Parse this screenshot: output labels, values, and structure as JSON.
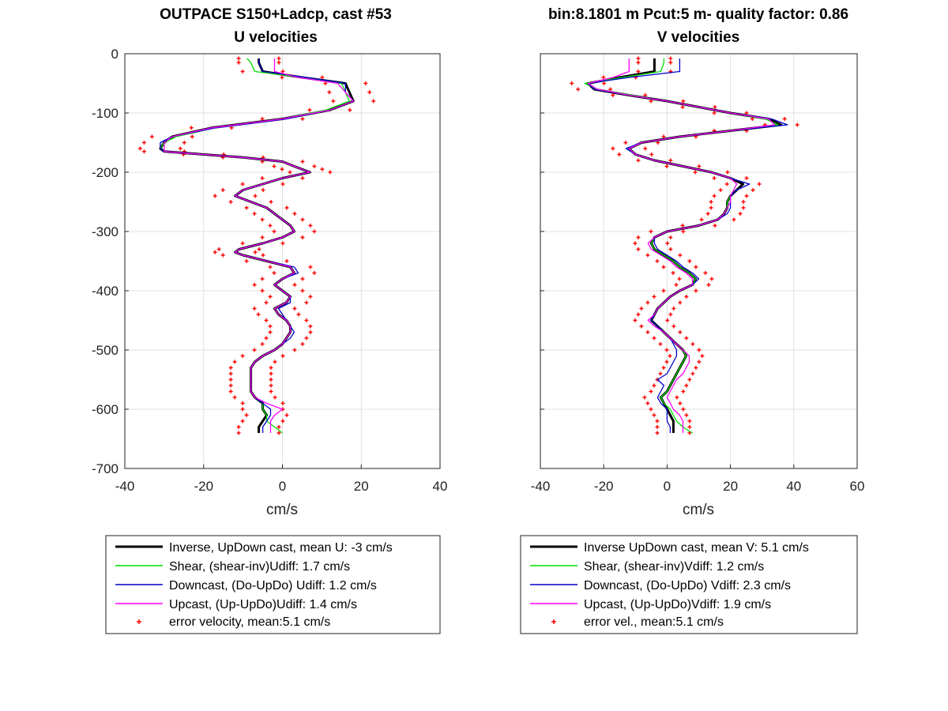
{
  "chart_data": [
    {
      "type": "line",
      "title_lines": [
        "OUTPACE S150+Ladcp, cast #53",
        "U velocities"
      ],
      "xlabel": "cm/s",
      "ylabel": "",
      "xlim": [
        -40,
        40
      ],
      "ylim": [
        -700,
        0
      ],
      "xticks": [
        -40,
        -20,
        0,
        20,
        40
      ],
      "yticks": [
        0,
        -100,
        -200,
        -300,
        -400,
        -500,
        -600,
        -700
      ],
      "grid": true,
      "legend_position": "below",
      "legend": [
        "Inverse, UpDown cast, mean U:  -3 cm/s",
        "Shear, (shear-inv)Udiff:  1.7 cm/s",
        "Downcast, (Do-UpDo) Udiff:  1.2 cm/s",
        "Upcast, (Up-UpDo)Udiff:  1.4 cm/s",
        "error velocity, mean:5.1 cm/s"
      ],
      "depth": [
        -8,
        -15,
        -30,
        -40,
        -50,
        -65,
        -80,
        -95,
        -110,
        -125,
        -140,
        -150,
        -160,
        -165,
        -170,
        -175,
        -182,
        -190,
        -195,
        -200,
        -210,
        -220,
        -230,
        -240,
        -250,
        -260,
        -270,
        -280,
        -290,
        -300,
        -310,
        -320,
        -330,
        -335,
        -340,
        -350,
        -360,
        -370,
        -380,
        -390,
        -400,
        -410,
        -420,
        -430,
        -440,
        -450,
        -460,
        -470,
        -480,
        -490,
        -500,
        -510,
        -520,
        -530,
        -540,
        -550,
        -560,
        -570,
        -580,
        -590,
        -600,
        -610,
        -620,
        -630,
        -640
      ],
      "series": [
        {
          "style": "inverse",
          "values": [
            -6,
            -6,
            -5,
            5,
            16,
            17,
            18,
            12,
            0,
            -18,
            -28,
            -30,
            -31,
            -30,
            -20,
            -10,
            0,
            3,
            5,
            7,
            0,
            -5,
            -10,
            -12,
            -8,
            -4,
            -2,
            0,
            2,
            3,
            0,
            -5,
            -11,
            -12,
            -10,
            -4,
            2,
            3,
            0,
            -2,
            0,
            2,
            1,
            -2,
            -1,
            1,
            2,
            2,
            1,
            0,
            -2,
            -5,
            -7,
            -8,
            -8,
            -8,
            -8,
            -8,
            -7,
            -5,
            -5,
            -4,
            -5,
            -6,
            -6
          ]
        },
        {
          "style": "shear",
          "values": [
            -9,
            -8,
            -7,
            5,
            15,
            16,
            17,
            11,
            0,
            -17,
            -27,
            -30,
            -31,
            -30,
            -20,
            -10,
            0,
            3,
            5,
            7,
            0,
            -5,
            -10,
            -12,
            -8,
            -4,
            -2,
            0,
            2,
            3,
            0,
            -5,
            -11,
            -12,
            -10,
            -4,
            2,
            3,
            0,
            -2,
            0,
            2,
            1,
            -2,
            -1,
            1,
            2,
            2,
            1,
            0,
            -2,
            -5,
            -7,
            -8,
            -8,
            -8,
            -8,
            -8,
            -7,
            -5,
            -5,
            -4,
            -4,
            -2,
            0
          ]
        },
        {
          "style": "down",
          "values": [
            -6,
            -6,
            -5,
            6,
            16,
            16,
            18,
            12,
            1,
            -17,
            -28,
            -31,
            -31,
            -30,
            -20,
            -10,
            0,
            3,
            5,
            7,
            0,
            -5,
            -10,
            -12,
            -8,
            -4,
            -2,
            0,
            2,
            3,
            0,
            -5,
            -11,
            -12,
            -10,
            -4,
            3,
            4,
            0,
            -2,
            0,
            2,
            2,
            -1,
            0,
            1,
            2,
            3,
            2,
            0,
            -2,
            -5,
            -7,
            -8,
            -8,
            -8,
            -8,
            -8,
            -7,
            -5,
            -3,
            -3,
            -4,
            -5,
            -5
          ]
        },
        {
          "style": "up",
          "values": [
            -2,
            -2,
            -2,
            4,
            14,
            16,
            18,
            12,
            0,
            -18,
            -28,
            -30,
            -30,
            -30,
            -20,
            -10,
            0,
            3,
            5,
            7,
            0,
            -5,
            -10,
            -12,
            -8,
            -4,
            -2,
            0,
            2,
            3,
            0,
            -5,
            -11,
            -12,
            -10,
            -4,
            2,
            3,
            0,
            -2,
            0,
            2,
            1,
            -2,
            -1,
            1,
            2,
            2,
            1,
            0,
            -2,
            -5,
            -7,
            -8,
            -8,
            -8,
            -8,
            -8,
            -7,
            -4,
            0,
            -2,
            -3,
            -3,
            -3
          ]
        }
      ],
      "error_offset": 5.1
    },
    {
      "type": "line",
      "title_lines": [
        "bin:8.1801 m  Pcut:5 m- quality factor:  0.86",
        "V velocities"
      ],
      "xlabel": "cm/s",
      "ylabel": "",
      "xlim": [
        -40,
        60
      ],
      "ylim": [
        -700,
        0
      ],
      "xticks": [
        -40,
        -20,
        0,
        20,
        40,
        60
      ],
      "yticks": [
        0,
        -100,
        -200,
        -300,
        -400,
        -500,
        -600,
        -700
      ],
      "grid": true,
      "legend_position": "below",
      "legend": [
        "Inverse UpDown cast, mean V:  5.1 cm/s",
        "Shear, (shear-inv)Vdiff:  1.2 cm/s",
        "Downcast, (Do-UpDo) Vdiff:  2.3 cm/s",
        "Upcast, (Up-UpDo)Vdiff:  1.9 cm/s",
        "error vel., mean:5.1 cm/s"
      ],
      "depth": [
        -8,
        -15,
        -30,
        -40,
        -50,
        -60,
        -70,
        -80,
        -90,
        -100,
        -110,
        -120,
        -130,
        -140,
        -150,
        -160,
        -170,
        -180,
        -190,
        -200,
        -210,
        -220,
        -230,
        -240,
        -250,
        -260,
        -270,
        -280,
        -290,
        -300,
        -310,
        -320,
        -330,
        -340,
        -350,
        -360,
        -370,
        -380,
        -390,
        -400,
        -410,
        -420,
        -430,
        -440,
        -450,
        -460,
        -470,
        -480,
        -490,
        -500,
        -510,
        -520,
        -530,
        -540,
        -550,
        -560,
        -570,
        -580,
        -590,
        -600,
        -610,
        -620,
        -630,
        -640
      ],
      "series": [
        {
          "style": "inverse",
          "values": [
            -4,
            -4,
            -4,
            -15,
            -25,
            -23,
            -12,
            0,
            10,
            20,
            32,
            36,
            20,
            4,
            -8,
            -12,
            -10,
            -4,
            5,
            14,
            20,
            24,
            22,
            20,
            19,
            19,
            18,
            16,
            10,
            0,
            -4,
            -5,
            -4,
            -1,
            2,
            4,
            7,
            9,
            8,
            4,
            1,
            -1,
            -3,
            -4,
            -5,
            -3,
            -1,
            1,
            3,
            5,
            6,
            5,
            4,
            3,
            2,
            1,
            0,
            -2,
            -1,
            0,
            1,
            2,
            2,
            2
          ]
        },
        {
          "style": "shear",
          "values": [
            -1,
            -1,
            -2,
            -14,
            -26,
            -22,
            -11,
            0,
            10,
            20,
            31,
            35,
            20,
            4,
            -8,
            -12,
            -10,
            -4,
            5,
            14,
            20,
            22,
            21,
            20,
            19,
            19,
            18,
            16,
            10,
            0,
            -4,
            -5,
            -4,
            -1,
            2,
            4,
            7,
            9,
            8,
            4,
            1,
            -1,
            -3,
            -4,
            -5,
            -3,
            -1,
            1,
            3,
            5,
            6,
            5,
            4,
            3,
            2,
            1,
            0,
            -2,
            -1,
            1,
            2,
            3,
            5,
            8
          ]
        },
        {
          "style": "down",
          "values": [
            4,
            4,
            4,
            -12,
            -25,
            -23,
            -12,
            0,
            10,
            20,
            33,
            38,
            20,
            4,
            -8,
            -13,
            -10,
            -4,
            5,
            14,
            20,
            26,
            22,
            20,
            20,
            20,
            19,
            16,
            10,
            0,
            -4,
            -4,
            -3,
            0,
            3,
            5,
            8,
            10,
            8,
            4,
            1,
            -1,
            -3,
            -4,
            -5,
            -3,
            -1,
            1,
            2,
            3,
            3,
            2,
            1,
            0,
            -3,
            -1,
            -2,
            -3,
            -2,
            0,
            0,
            0,
            1,
            1
          ]
        },
        {
          "style": "up",
          "values": [
            -12,
            -12,
            -12,
            -17,
            -25,
            -22,
            -12,
            0,
            10,
            20,
            32,
            34,
            20,
            4,
            -8,
            -12,
            -10,
            -4,
            5,
            14,
            20,
            22,
            21,
            20,
            20,
            19,
            18,
            16,
            10,
            0,
            -4,
            -6,
            -5,
            -2,
            1,
            3,
            6,
            8,
            8,
            4,
            1,
            -1,
            -3,
            -4,
            -6,
            -4,
            -1,
            1,
            3,
            5,
            7,
            7,
            6,
            5,
            3,
            2,
            1,
            0,
            1,
            2,
            4,
            5,
            5,
            5
          ]
        }
      ],
      "error_offset": 5.1
    }
  ],
  "colors": {
    "inverse": "#000000",
    "shear": "#00e000",
    "down": "#0000cc",
    "up": "#ff00ff",
    "error": "#ff0000",
    "grid": "#e0e0e0"
  }
}
